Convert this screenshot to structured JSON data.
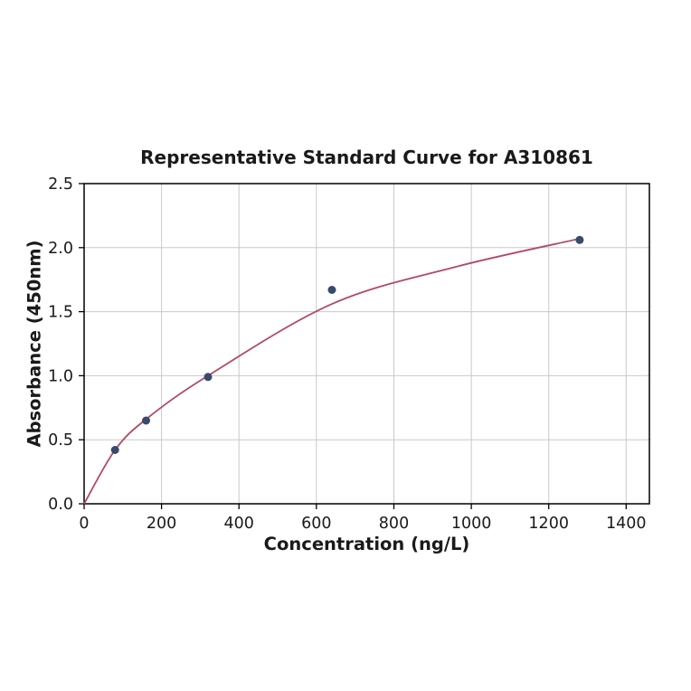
{
  "chart_data": {
    "type": "scatter",
    "title": "Representative Standard Curve for A310861",
    "xlabel": "Concentration (ng/L)",
    "ylabel": "Absorbance (450nm)",
    "xlim": [
      0,
      1460
    ],
    "ylim": [
      0,
      2.5
    ],
    "xticks": [
      0,
      200,
      400,
      600,
      800,
      1000,
      1200,
      1400
    ],
    "yticks": [
      0,
      0.5,
      1,
      1.5,
      2,
      2.5
    ],
    "ytick_decimals": 1,
    "grid": true,
    "legend": "none",
    "grid_color": "#c9c9c9",
    "axis_color": "#000000",
    "series": [
      {
        "name": "fitted-curve",
        "type": "line",
        "color": "#b24a67",
        "x": [
          0,
          80,
          160,
          320,
          640,
          960,
          1280
        ],
        "y": [
          0.0,
          0.42,
          0.66,
          1.0,
          1.56,
          1.85,
          2.07
        ]
      },
      {
        "name": "standard-points",
        "type": "scatter",
        "color": "#3a4a6d",
        "x": [
          80,
          160,
          320,
          640,
          1280
        ],
        "y": [
          0.42,
          0.65,
          0.99,
          1.67,
          2.06
        ]
      }
    ]
  }
}
